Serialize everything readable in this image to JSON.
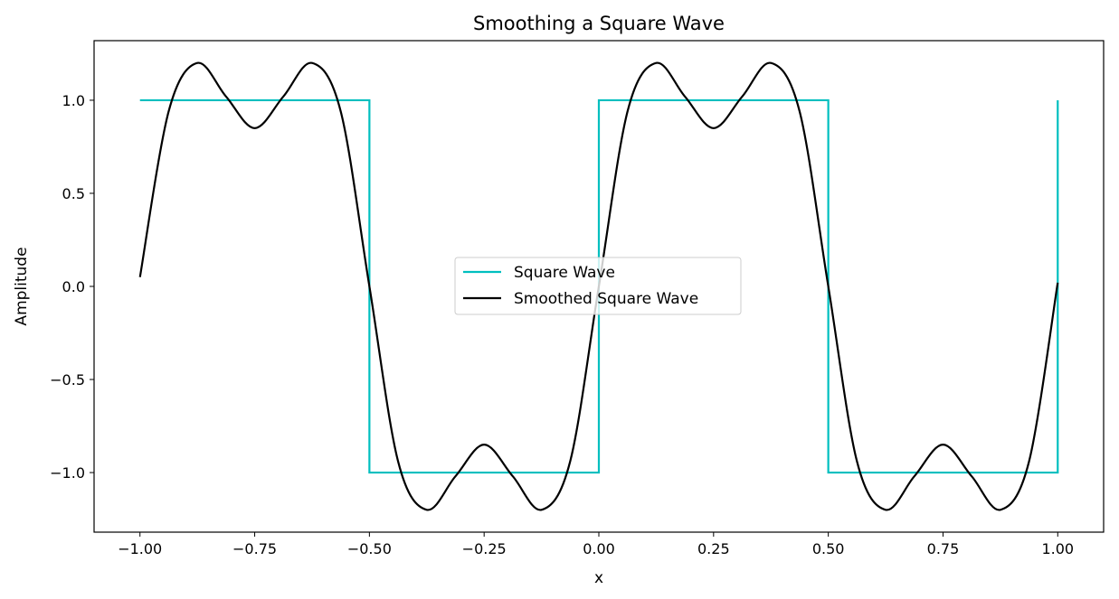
{
  "chart_data": {
    "type": "line",
    "title": "Smoothing a Square Wave",
    "xlabel": "x",
    "ylabel": "Amplitude",
    "xlim": [
      -1.1,
      1.1
    ],
    "ylim": [
      -1.32,
      1.32
    ],
    "xticks": [
      -1.0,
      -0.75,
      -0.5,
      -0.25,
      0.0,
      0.25,
      0.5,
      0.75,
      1.0
    ],
    "xtick_labels": [
      "−1.00",
      "−0.75",
      "−0.50",
      "−0.25",
      "0.00",
      "0.25",
      "0.50",
      "0.75",
      "1.00"
    ],
    "yticks": [
      -1.0,
      -0.5,
      0.0,
      0.5,
      1.0
    ],
    "ytick_labels": [
      "−1.0",
      "−0.5",
      "0.0",
      "0.5",
      "1.0"
    ],
    "grid": false,
    "legend": {
      "position": "center"
    },
    "series": [
      {
        "name": "Square Wave",
        "color": "#00bfbf",
        "x": [
          -1.0,
          -0.5,
          -0.5,
          0.0,
          0.0,
          0.5,
          0.5,
          1.0,
          1.0
        ],
        "y": [
          1.0,
          1.0,
          -1.0,
          -1.0,
          1.0,
          1.0,
          -1.0,
          -1.0,
          1.0
        ]
      },
      {
        "name": "Smoothed Square Wave",
        "color": "#000000",
        "x": [
          -1.0,
          -0.9375,
          -0.875,
          -0.8125,
          -0.75,
          -0.6875,
          -0.625,
          -0.5625,
          -0.5,
          -0.4375,
          -0.375,
          -0.3125,
          -0.25,
          -0.1875,
          -0.125,
          -0.0625,
          0.0,
          0.0625,
          0.125,
          0.1875,
          0.25,
          0.3125,
          0.375,
          0.4375,
          0.5,
          0.5625,
          0.625,
          0.6875,
          0.75,
          0.8125,
          0.875,
          0.9375,
          1.0
        ],
        "y": [
          0.05,
          0.94,
          1.2,
          1.02,
          0.85,
          1.02,
          1.2,
          0.94,
          0.0,
          -0.94,
          -1.2,
          -1.02,
          -0.85,
          -1.02,
          -1.2,
          -0.94,
          0.0,
          0.94,
          1.2,
          1.02,
          0.85,
          1.02,
          1.2,
          0.94,
          0.0,
          -0.94,
          -1.2,
          -1.02,
          -0.85,
          -1.02,
          -1.2,
          -0.94,
          0.02
        ]
      }
    ]
  }
}
